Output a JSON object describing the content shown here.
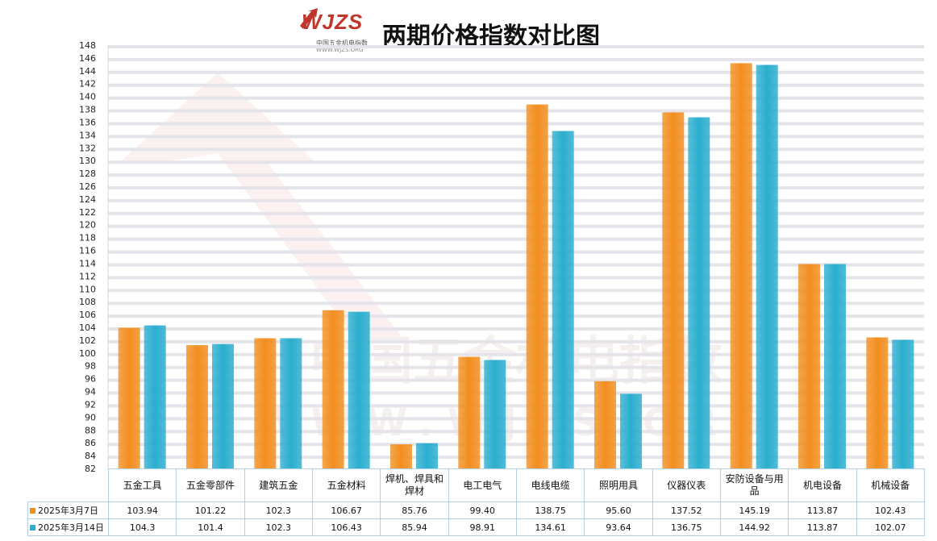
{
  "header": {
    "logo_text": "WJZS",
    "logo_subtitle": "中国五金机电指数",
    "logo_url": "WWW.WJZS.ORG",
    "title": "两期价格指数对比图"
  },
  "watermark": {
    "text": "中国五金机电指数",
    "url": "WWW.WJZS.ORG"
  },
  "chart_data": {
    "type": "bar",
    "title": "两期价格指数对比图",
    "categories": [
      "五金工具",
      "五金零部件",
      "建筑五金",
      "五金材料",
      "焊机、焊具和焊材",
      "电工电气",
      "电线电缆",
      "照明用具",
      "仪器仪表",
      "安防设备与用品",
      "机电设备",
      "机械设备"
    ],
    "category_labels": [
      "五金工具",
      "五金零部件",
      "建筑五金",
      "五金材料",
      "焊机、焊具和\n焊材",
      "电工电气",
      "电线电缆",
      "照明用具",
      "仪器仪表",
      "安防设备与用\n品",
      "机电设备",
      "机械设备"
    ],
    "series": [
      {
        "name": "2025年3月7日",
        "color": "#f28e1f",
        "values": [
          103.94,
          101.22,
          102.3,
          106.67,
          85.76,
          99.4,
          138.75,
          95.6,
          137.52,
          145.19,
          113.87,
          102.43
        ],
        "labels": [
          "103.94",
          "101.22",
          "102.3",
          "106.67",
          "85.76",
          "99.40",
          "138.75",
          "95.60",
          "137.52",
          "145.19",
          "113.87",
          "102.43"
        ]
      },
      {
        "name": "2025年3月14日",
        "color": "#2aaecf",
        "values": [
          104.3,
          101.4,
          102.3,
          106.43,
          85.94,
          98.91,
          134.61,
          93.64,
          136.75,
          144.92,
          113.87,
          102.07
        ],
        "labels": [
          "104.3",
          "101.4",
          "102.3",
          "106.43",
          "85.94",
          "98.91",
          "134.61",
          "93.64",
          "136.75",
          "144.92",
          "113.87",
          "102.07"
        ]
      }
    ],
    "ylim": [
      82,
      148
    ],
    "y_ticks": [
      "82",
      "84",
      "86",
      "88",
      "90",
      "92",
      "94",
      "96",
      "98",
      "100",
      "102",
      "104",
      "106",
      "108",
      "110",
      "112",
      "114",
      "116",
      "118",
      "120",
      "122",
      "124",
      "126",
      "128",
      "130",
      "132",
      "134",
      "136",
      "138",
      "140",
      "142",
      "144",
      "146",
      "148"
    ],
    "grid": true,
    "legend": "data-table"
  }
}
